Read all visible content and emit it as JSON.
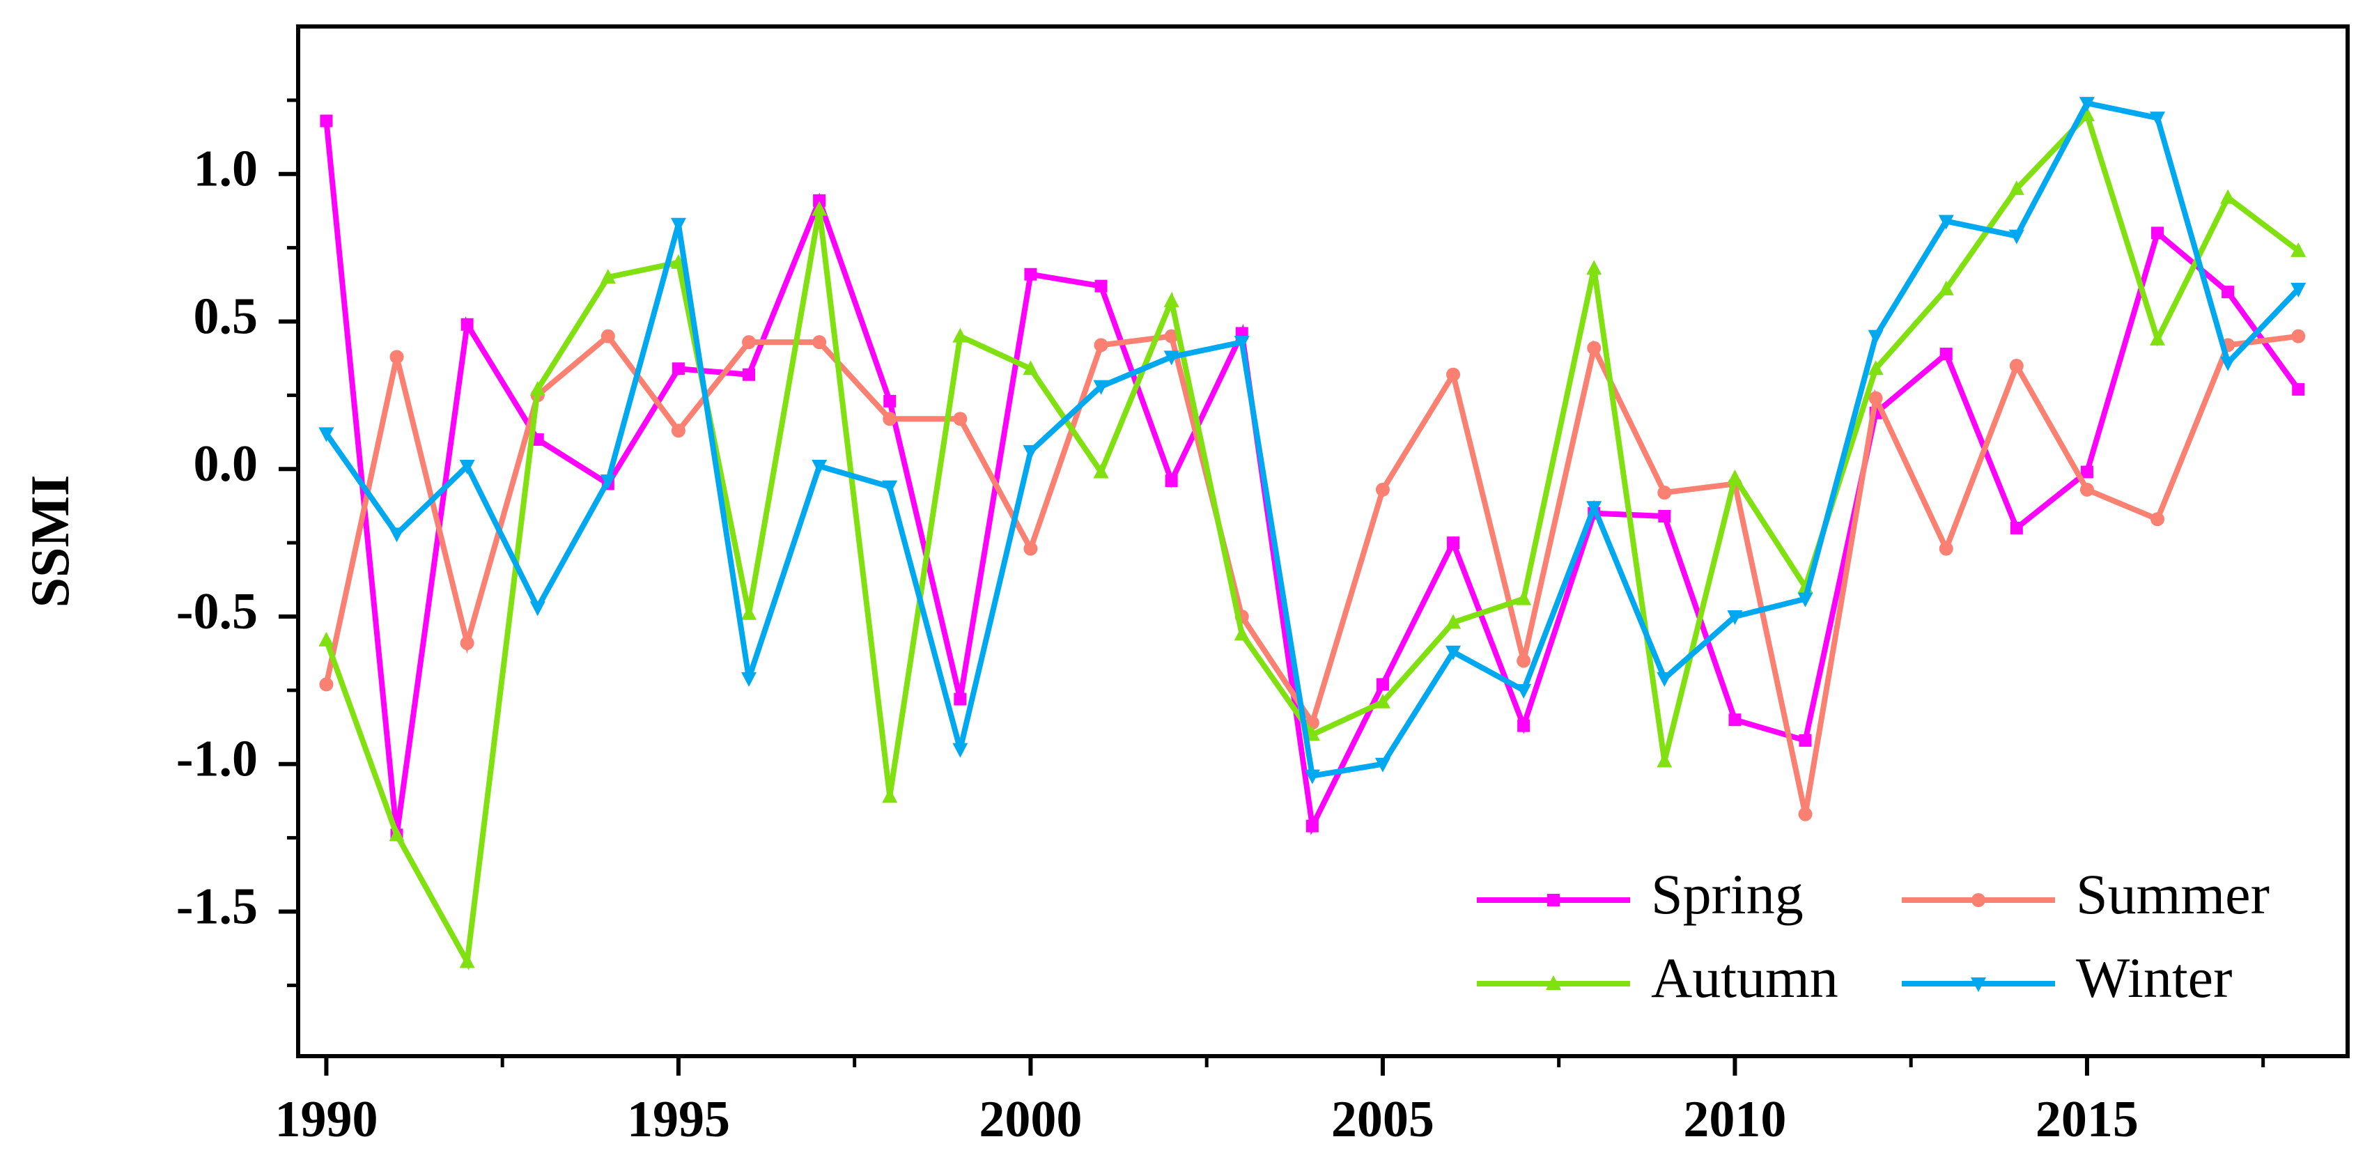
{
  "chart_data": {
    "type": "line",
    "title": "",
    "xlabel": "",
    "ylabel": "SSMI",
    "xlim": [
      1989.6,
      2018.7
    ],
    "ylim": [
      -1.99,
      1.5
    ],
    "x_ticks": [
      1990,
      1995,
      2000,
      2005,
      2010,
      2015
    ],
    "x_tick_labels": [
      "1990",
      "1995",
      "2000",
      "2005",
      "2010",
      "2015"
    ],
    "y_ticks": [
      1.0,
      0.5,
      0.0,
      -0.5,
      -1.0,
      -1.5
    ],
    "y_tick_labels": [
      "1.0",
      "0.5",
      "0.0",
      "-0.5",
      "-1.0",
      "-1.5"
    ],
    "grid": false,
    "legend_position": "bottom-right",
    "x": [
      1990,
      1991,
      1992,
      1993,
      1994,
      1995,
      1996,
      1997,
      1998,
      1999,
      2000,
      2001,
      2002,
      2003,
      2004,
      2005,
      2006,
      2007,
      2008,
      2009,
      2010,
      2011,
      2012,
      2013,
      2014,
      2015,
      2016,
      2017,
      2018
    ],
    "series": [
      {
        "name": "Spring",
        "color": "#ff00ff",
        "marker": "square",
        "values": [
          1.18,
          -1.24,
          0.49,
          0.1,
          -0.05,
          0.34,
          0.32,
          0.91,
          0.23,
          -0.78,
          0.66,
          0.62,
          -0.04,
          0.46,
          -1.21,
          -0.73,
          -0.25,
          -0.87,
          -0.15,
          -0.16,
          -0.85,
          -0.92,
          0.19,
          0.39,
          -0.2,
          -0.01,
          0.8,
          0.6,
          0.27
        ]
      },
      {
        "name": "Summer",
        "color": "#fa8072",
        "marker": "circle",
        "values": [
          -0.73,
          0.38,
          -0.59,
          0.25,
          0.45,
          0.13,
          0.43,
          0.43,
          0.17,
          0.17,
          -0.27,
          0.42,
          0.45,
          -0.5,
          -0.86,
          -0.07,
          0.32,
          -0.65,
          0.41,
          -0.08,
          -0.05,
          -1.17,
          0.24,
          -0.27,
          0.35,
          -0.07,
          -0.17,
          0.42,
          0.45
        ]
      },
      {
        "name": "Autumn",
        "color": "#80e010",
        "marker": "triangle-up",
        "values": [
          -0.58,
          -1.24,
          -1.67,
          0.27,
          0.65,
          0.7,
          -0.49,
          0.88,
          -1.11,
          0.45,
          0.34,
          -0.01,
          0.57,
          -0.56,
          -0.9,
          -0.79,
          -0.52,
          -0.44,
          0.68,
          -0.99,
          -0.03,
          -0.4,
          0.34,
          0.61,
          0.95,
          1.2,
          0.44,
          0.92,
          0.74
        ]
      },
      {
        "name": "Winter",
        "color": "#00a8f0",
        "marker": "triangle-down",
        "values": [
          0.12,
          -0.22,
          0.01,
          -0.47,
          -0.04,
          0.83,
          -0.71,
          0.01,
          -0.06,
          -0.95,
          0.06,
          0.28,
          0.38,
          0.43,
          -1.04,
          -1.0,
          -0.62,
          -0.75,
          -0.13,
          -0.71,
          -0.5,
          -0.44,
          0.45,
          0.84,
          0.79,
          1.24,
          1.19,
          0.36,
          0.61
        ]
      }
    ]
  }
}
